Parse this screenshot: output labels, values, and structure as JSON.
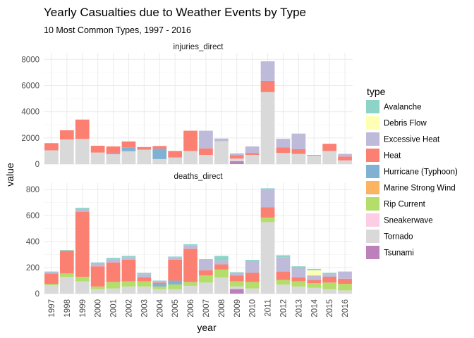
{
  "chart_data": {
    "type": "bar",
    "stacked": true,
    "title": "Yearly Casualties due to Weather Events by Type",
    "subtitle": "10 Most Common Types, 1997 - 2016",
    "xlabel": "year",
    "ylabel": "value",
    "legend_title": "type",
    "legend_position": "right",
    "categories": [
      "1997",
      "1998",
      "1999",
      "2000",
      "2001",
      "2002",
      "2003",
      "2004",
      "2005",
      "2006",
      "2007",
      "2008",
      "2009",
      "2010",
      "2011",
      "2012",
      "2013",
      "2014",
      "2015",
      "2016"
    ],
    "types": [
      {
        "name": "Avalanche",
        "color": "#8DD3C7"
      },
      {
        "name": "Debris Flow",
        "color": "#FFFFB3"
      },
      {
        "name": "Excessive Heat",
        "color": "#BEBADA"
      },
      {
        "name": "Heat",
        "color": "#FB8072"
      },
      {
        "name": "Hurricane (Typhoon)",
        "color": "#80B1D3"
      },
      {
        "name": "Marine Strong Wind",
        "color": "#FDB462"
      },
      {
        "name": "Rip Current",
        "color": "#B3DE69"
      },
      {
        "name": "Sneakerwave",
        "color": "#FCCDE5"
      },
      {
        "name": "Tornado",
        "color": "#D9D9D9"
      },
      {
        "name": "Tsunami",
        "color": "#BC80BD"
      }
    ],
    "panels": [
      {
        "strip_label": "injuries_direct",
        "ylim": [
          0,
          8500
        ],
        "yticks": [
          0,
          2000,
          4000,
          6000,
          8000
        ],
        "series": [
          {
            "name": "Tsunami",
            "values": [
              0,
              0,
              0,
              0,
              0,
              0,
              0,
              0,
              0,
              0,
              0,
              0,
              220,
              0,
              0,
              0,
              0,
              0,
              0,
              0
            ]
          },
          {
            "name": "Tornado",
            "values": [
              1050,
              1880,
              1920,
              880,
              750,
              980,
              1100,
              380,
              500,
              1000,
              700,
              1750,
              200,
              700,
              5500,
              850,
              780,
              650,
              1000,
              280
            ]
          },
          {
            "name": "Rip Current",
            "values": [
              0,
              0,
              0,
              0,
              0,
              0,
              0,
              0,
              0,
              0,
              0,
              0,
              0,
              0,
              0,
              0,
              0,
              0,
              0,
              0
            ]
          },
          {
            "name": "Sneakerwave",
            "values": [
              0,
              0,
              0,
              0,
              0,
              0,
              0,
              0,
              0,
              0,
              0,
              0,
              0,
              0,
              0,
              0,
              0,
              0,
              0,
              0
            ]
          },
          {
            "name": "Marine Strong Wind",
            "values": [
              0,
              0,
              0,
              0,
              0,
              0,
              0,
              0,
              0,
              0,
              0,
              0,
              0,
              0,
              0,
              0,
              0,
              0,
              0,
              0
            ]
          },
          {
            "name": "Hurricane (Typhoon)",
            "values": [
              0,
              0,
              0,
              0,
              100,
              300,
              0,
              800,
              0,
              0,
              0,
              0,
              0,
              0,
              0,
              0,
              0,
              0,
              0,
              0
            ]
          },
          {
            "name": "Heat",
            "values": [
              550,
              700,
              1480,
              520,
              500,
              450,
              200,
              200,
              500,
              1550,
              500,
              0,
              250,
              150,
              850,
              430,
              350,
              50,
              550,
              300
            ]
          },
          {
            "name": "Excessive Heat",
            "values": [
              0,
              0,
              0,
              0,
              0,
              0,
              0,
              0,
              0,
              0,
              1350,
              200,
              150,
              500,
              1500,
              650,
              1200,
              0,
              0,
              200
            ]
          },
          {
            "name": "Debris Flow",
            "values": [
              0,
              0,
              0,
              0,
              0,
              0,
              0,
              0,
              0,
              0,
              0,
              0,
              0,
              0,
              0,
              0,
              0,
              0,
              0,
              0
            ]
          },
          {
            "name": "Avalanche",
            "values": [
              0,
              0,
              0,
              0,
              0,
              0,
              0,
              0,
              0,
              0,
              0,
              0,
              0,
              0,
              0,
              0,
              0,
              0,
              0,
              0
            ]
          }
        ]
      },
      {
        "strip_label": "deaths_direct",
        "ylim": [
          0,
          850
        ],
        "yticks": [
          0,
          200,
          400,
          600,
          800
        ],
        "series": [
          {
            "name": "Tsunami",
            "values": [
              0,
              0,
              0,
              0,
              0,
              0,
              0,
              0,
              0,
              0,
              0,
              0,
              35,
              0,
              0,
              0,
              0,
              0,
              0,
              0
            ]
          },
          {
            "name": "Tornado",
            "values": [
              65,
              130,
              95,
              35,
              40,
              55,
              55,
              35,
              35,
              60,
              85,
              125,
              20,
              40,
              550,
              70,
              55,
              45,
              35,
              25
            ]
          },
          {
            "name": "Rip Current",
            "values": [
              10,
              25,
              35,
              20,
              50,
              40,
              40,
              20,
              35,
              30,
              55,
              60,
              40,
              50,
              35,
              35,
              40,
              35,
              50,
              50
            ]
          },
          {
            "name": "Sneakerwave",
            "values": [
              0,
              0,
              0,
              0,
              0,
              0,
              0,
              0,
              0,
              0,
              0,
              0,
              0,
              0,
              0,
              0,
              0,
              0,
              0,
              0
            ]
          },
          {
            "name": "Marine Strong Wind",
            "values": [
              0,
              0,
              0,
              0,
              0,
              0,
              0,
              0,
              0,
              0,
              0,
              0,
              0,
              0,
              0,
              0,
              0,
              0,
              0,
              0
            ]
          },
          {
            "name": "Hurricane (Typhoon)",
            "values": [
              0,
              0,
              0,
              0,
              0,
              0,
              0,
              20,
              30,
              0,
              0,
              0,
              0,
              0,
              0,
              0,
              0,
              0,
              0,
              0
            ]
          },
          {
            "name": "Heat",
            "values": [
              80,
              175,
              500,
              155,
              150,
              165,
              30,
              10,
              160,
              255,
              40,
              40,
              45,
              70,
              80,
              65,
              30,
              25,
              45,
              40
            ]
          },
          {
            "name": "Excessive Heat",
            "values": [
              10,
              0,
              20,
              20,
              25,
              20,
              25,
              10,
              20,
              25,
              80,
              30,
              20,
              90,
              135,
              110,
              70,
              35,
              20,
              55
            ]
          },
          {
            "name": "Debris Flow",
            "values": [
              0,
              0,
              0,
              0,
              0,
              0,
              0,
              0,
              0,
              0,
              0,
              0,
              0,
              0,
              0,
              0,
              0,
              40,
              0,
              0
            ]
          },
          {
            "name": "Avalanche",
            "values": [
              5,
              5,
              10,
              10,
              10,
              10,
              10,
              5,
              5,
              10,
              5,
              35,
              5,
              10,
              10,
              15,
              15,
              10,
              10,
              0
            ]
          }
        ]
      }
    ]
  }
}
